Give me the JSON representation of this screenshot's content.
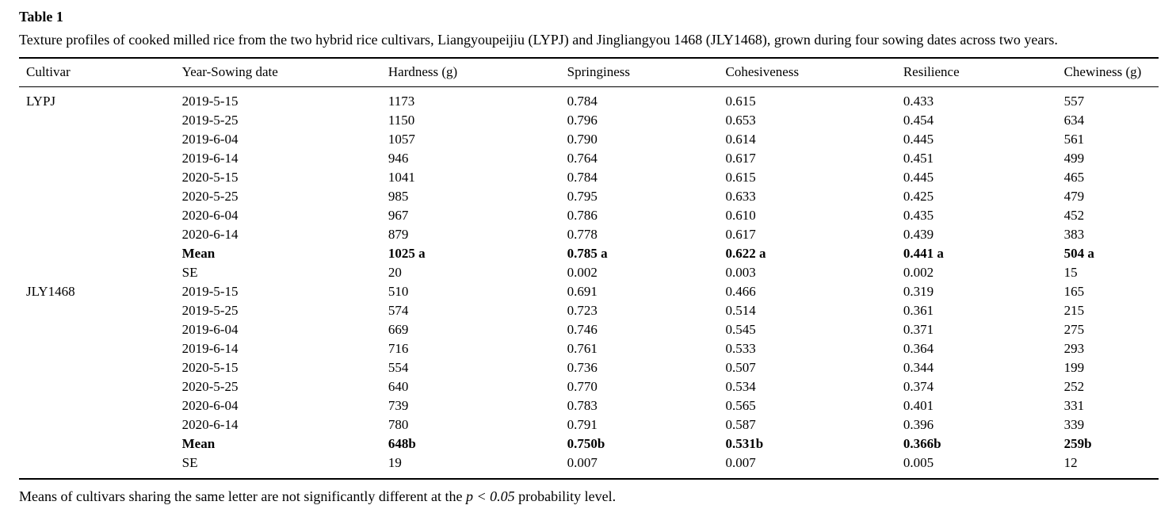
{
  "title": "Table 1",
  "caption": "Texture profiles of cooked milled rice from the two hybrid rice cultivars, Liangyoupeijiu (LYPJ) and Jingliangyou 1468 (JLY1468), grown during four sowing dates across two years.",
  "table": {
    "columns": [
      "Cultivar",
      "Year-Sowing date",
      "Hardness (g)",
      "Springiness",
      "Cohesiveness",
      "Resilience",
      "Chewiness (g)"
    ],
    "rows": [
      {
        "bold": false,
        "cells": [
          "LYPJ",
          "2019-5-15",
          "1173",
          "0.784",
          "0.615",
          "0.433",
          "557"
        ]
      },
      {
        "bold": false,
        "cells": [
          "",
          "2019-5-25",
          "1150",
          "0.796",
          "0.653",
          "0.454",
          "634"
        ]
      },
      {
        "bold": false,
        "cells": [
          "",
          "2019-6-04",
          "1057",
          "0.790",
          "0.614",
          "0.445",
          "561"
        ]
      },
      {
        "bold": false,
        "cells": [
          "",
          "2019-6-14",
          "946",
          "0.764",
          "0.617",
          "0.451",
          "499"
        ]
      },
      {
        "bold": false,
        "cells": [
          "",
          "2020-5-15",
          "1041",
          "0.784",
          "0.615",
          "0.445",
          "465"
        ]
      },
      {
        "bold": false,
        "cells": [
          "",
          "2020-5-25",
          "985",
          "0.795",
          "0.633",
          "0.425",
          "479"
        ]
      },
      {
        "bold": false,
        "cells": [
          "",
          "2020-6-04",
          "967",
          "0.786",
          "0.610",
          "0.435",
          "452"
        ]
      },
      {
        "bold": false,
        "cells": [
          "",
          "2020-6-14",
          "879",
          "0.778",
          "0.617",
          "0.439",
          "383"
        ]
      },
      {
        "bold": true,
        "cells": [
          "",
          "Mean",
          "1025 a",
          "0.785 a",
          "0.622 a",
          "0.441 a",
          "504 a"
        ]
      },
      {
        "bold": false,
        "cells": [
          "",
          "SE",
          "20",
          "0.002",
          "0.003",
          "0.002",
          "15"
        ]
      },
      {
        "bold": false,
        "cells": [
          "JLY1468",
          "2019-5-15",
          "510",
          "0.691",
          "0.466",
          "0.319",
          "165"
        ]
      },
      {
        "bold": false,
        "cells": [
          "",
          "2019-5-25",
          "574",
          "0.723",
          "0.514",
          "0.361",
          "215"
        ]
      },
      {
        "bold": false,
        "cells": [
          "",
          "2019-6-04",
          "669",
          "0.746",
          "0.545",
          "0.371",
          "275"
        ]
      },
      {
        "bold": false,
        "cells": [
          "",
          "2019-6-14",
          "716",
          "0.761",
          "0.533",
          "0.364",
          "293"
        ]
      },
      {
        "bold": false,
        "cells": [
          "",
          "2020-5-15",
          "554",
          "0.736",
          "0.507",
          "0.344",
          "199"
        ]
      },
      {
        "bold": false,
        "cells": [
          "",
          "2020-5-25",
          "640",
          "0.770",
          "0.534",
          "0.374",
          "252"
        ]
      },
      {
        "bold": false,
        "cells": [
          "",
          "2020-6-04",
          "739",
          "0.783",
          "0.565",
          "0.401",
          "331"
        ]
      },
      {
        "bold": false,
        "cells": [
          "",
          "2020-6-14",
          "780",
          "0.791",
          "0.587",
          "0.396",
          "339"
        ]
      },
      {
        "bold": true,
        "cells": [
          "",
          "Mean",
          "648b",
          "0.750b",
          "0.531b",
          "0.366b",
          "259b"
        ]
      },
      {
        "bold": false,
        "cells": [
          "",
          "SE",
          "19",
          "0.007",
          "0.007",
          "0.005",
          "12"
        ]
      }
    ]
  },
  "footnote": {
    "prefix": "Means of cultivars sharing the same letter are not significantly different at the ",
    "italic": "p < 0.05",
    "suffix": " probability level."
  },
  "colors": {
    "text": "#000000",
    "background": "#ffffff",
    "rule": "#000000"
  }
}
